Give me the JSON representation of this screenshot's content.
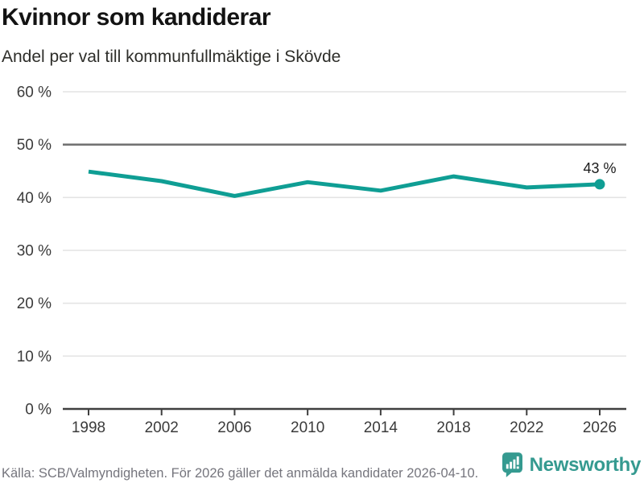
{
  "chart_data": {
    "type": "line",
    "title": "Kvinnor som kandiderar",
    "subtitle": "Andel per val till kommunfullmäktige i Skövde",
    "x": [
      "1998",
      "2002",
      "2006",
      "2010",
      "2014",
      "2018",
      "2022",
      "2026"
    ],
    "series": [
      {
        "name": "Kvinnor som kandiderar",
        "values": [
          44.9,
          43.1,
          40.3,
          42.9,
          41.3,
          44.0,
          41.9,
          42.5
        ]
      }
    ],
    "end_point_label": "43 %",
    "xlabel": "",
    "ylabel": "",
    "ylim": [
      0,
      60
    ],
    "y_ticks": [
      {
        "value": 0,
        "label": "0 %"
      },
      {
        "value": 10,
        "label": "10 %"
      },
      {
        "value": 20,
        "label": "20 %"
      },
      {
        "value": 30,
        "label": "30 %"
      },
      {
        "value": 40,
        "label": "40 %"
      },
      {
        "value": 50,
        "label": "50 %"
      },
      {
        "value": 60,
        "label": "60 %"
      }
    ],
    "reference_line_value": 50,
    "grid": true,
    "legend": "none",
    "marker_last_point": true
  },
  "colors": {
    "line": "#0f9e94",
    "grid": "#e4e4e4",
    "reference_line": "#6e6e6e",
    "axis": "#3f3f3f",
    "tick_label": "#3b3b3b",
    "annotation": "#1a1a1a",
    "source_text": "#75757d",
    "brand_teal": "#359a90"
  },
  "footer": {
    "source": "Källa: SCB/Valmyndigheten. För 2026 gäller det anmälda kandidater 2026-04-10.",
    "brand": "Newsworthy"
  }
}
